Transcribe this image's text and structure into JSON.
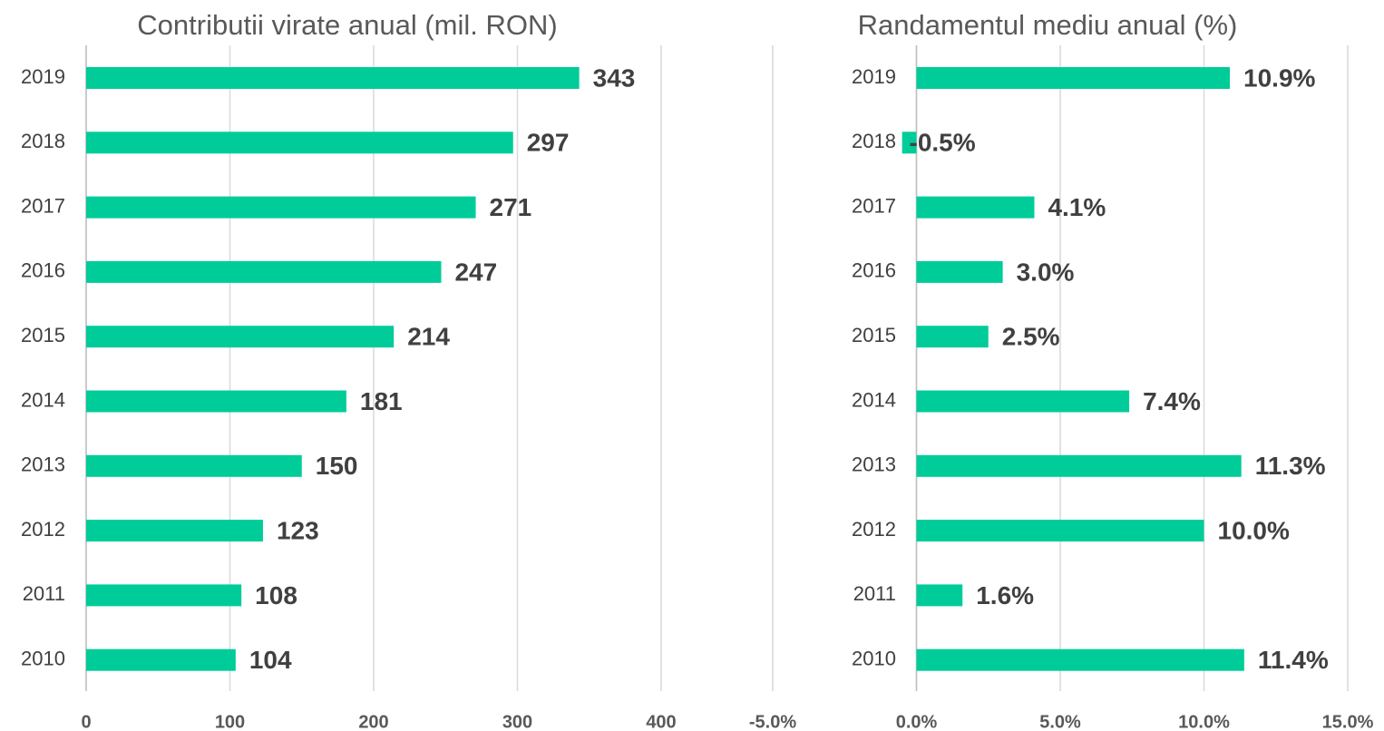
{
  "chart_data": [
    {
      "type": "bar",
      "orientation": "horizontal",
      "title": "Contributii virate anual (mil. RON)",
      "categories": [
        "2019",
        "2018",
        "2017",
        "2016",
        "2015",
        "2014",
        "2013",
        "2012",
        "2011",
        "2010"
      ],
      "values": [
        343,
        297,
        271,
        247,
        214,
        181,
        150,
        123,
        108,
        104
      ],
      "color": "#00cc99",
      "xlim": [
        0,
        400
      ],
      "xticks": [
        0,
        100,
        200,
        300,
        400
      ],
      "grid": true
    },
    {
      "type": "bar",
      "orientation": "horizontal",
      "title": "Randamentul mediu anual (%)",
      "categories": [
        "2019",
        "2018",
        "2017",
        "2016",
        "2015",
        "2014",
        "2013",
        "2012",
        "2011",
        "2010"
      ],
      "values": [
        10.9,
        -0.5,
        4.1,
        3.0,
        2.5,
        7.4,
        11.3,
        10.0,
        1.6,
        11.4
      ],
      "value_labels": [
        "10.9%",
        "-0.5%",
        "4.1%",
        "3.0%",
        "2.5%",
        "7.4%",
        "11.3%",
        "10.0%",
        "1.6%",
        "11.4%"
      ],
      "color": "#00cc99",
      "xlim": [
        -5,
        15
      ],
      "xticks": [
        {
          "value": -5,
          "label": "-5.0%"
        },
        {
          "value": 0,
          "label": "0.0%"
        },
        {
          "value": 5,
          "label": "5.0%"
        },
        {
          "value": 10,
          "label": "10.0%"
        },
        {
          "value": 15,
          "label": "15.0%"
        }
      ],
      "grid": true
    }
  ]
}
